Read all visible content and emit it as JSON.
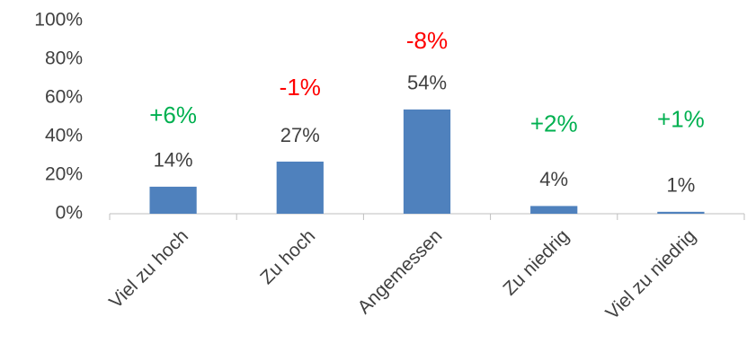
{
  "chart_data": {
    "type": "bar",
    "categories": [
      "Viel zu hoch",
      "Zu hoch",
      "Angemessen",
      "Zu niedrig",
      "Viel zu niedrig"
    ],
    "values": [
      14,
      27,
      54,
      4,
      1
    ],
    "value_labels": [
      "14%",
      "27%",
      "54%",
      "4%",
      "1%"
    ],
    "color": "#4f81bd",
    "ylim": [
      0,
      100
    ],
    "yticks": [
      {
        "value": 0,
        "label": "0%"
      },
      {
        "value": 20,
        "label": "20%"
      },
      {
        "value": 40,
        "label": "40%"
      },
      {
        "value": 60,
        "label": "60%"
      },
      {
        "value": 80,
        "label": "80%"
      },
      {
        "value": 100,
        "label": "100%"
      }
    ],
    "grid": false,
    "annotations": [
      {
        "text": "+6%",
        "color": "#00b050"
      },
      {
        "text": "-1%",
        "color": "#ff0000"
      },
      {
        "text": "-8%",
        "color": "#ff0000"
      },
      {
        "text": "+2%",
        "color": "#00b050"
      },
      {
        "text": "+1%",
        "color": "#00b050"
      }
    ]
  }
}
